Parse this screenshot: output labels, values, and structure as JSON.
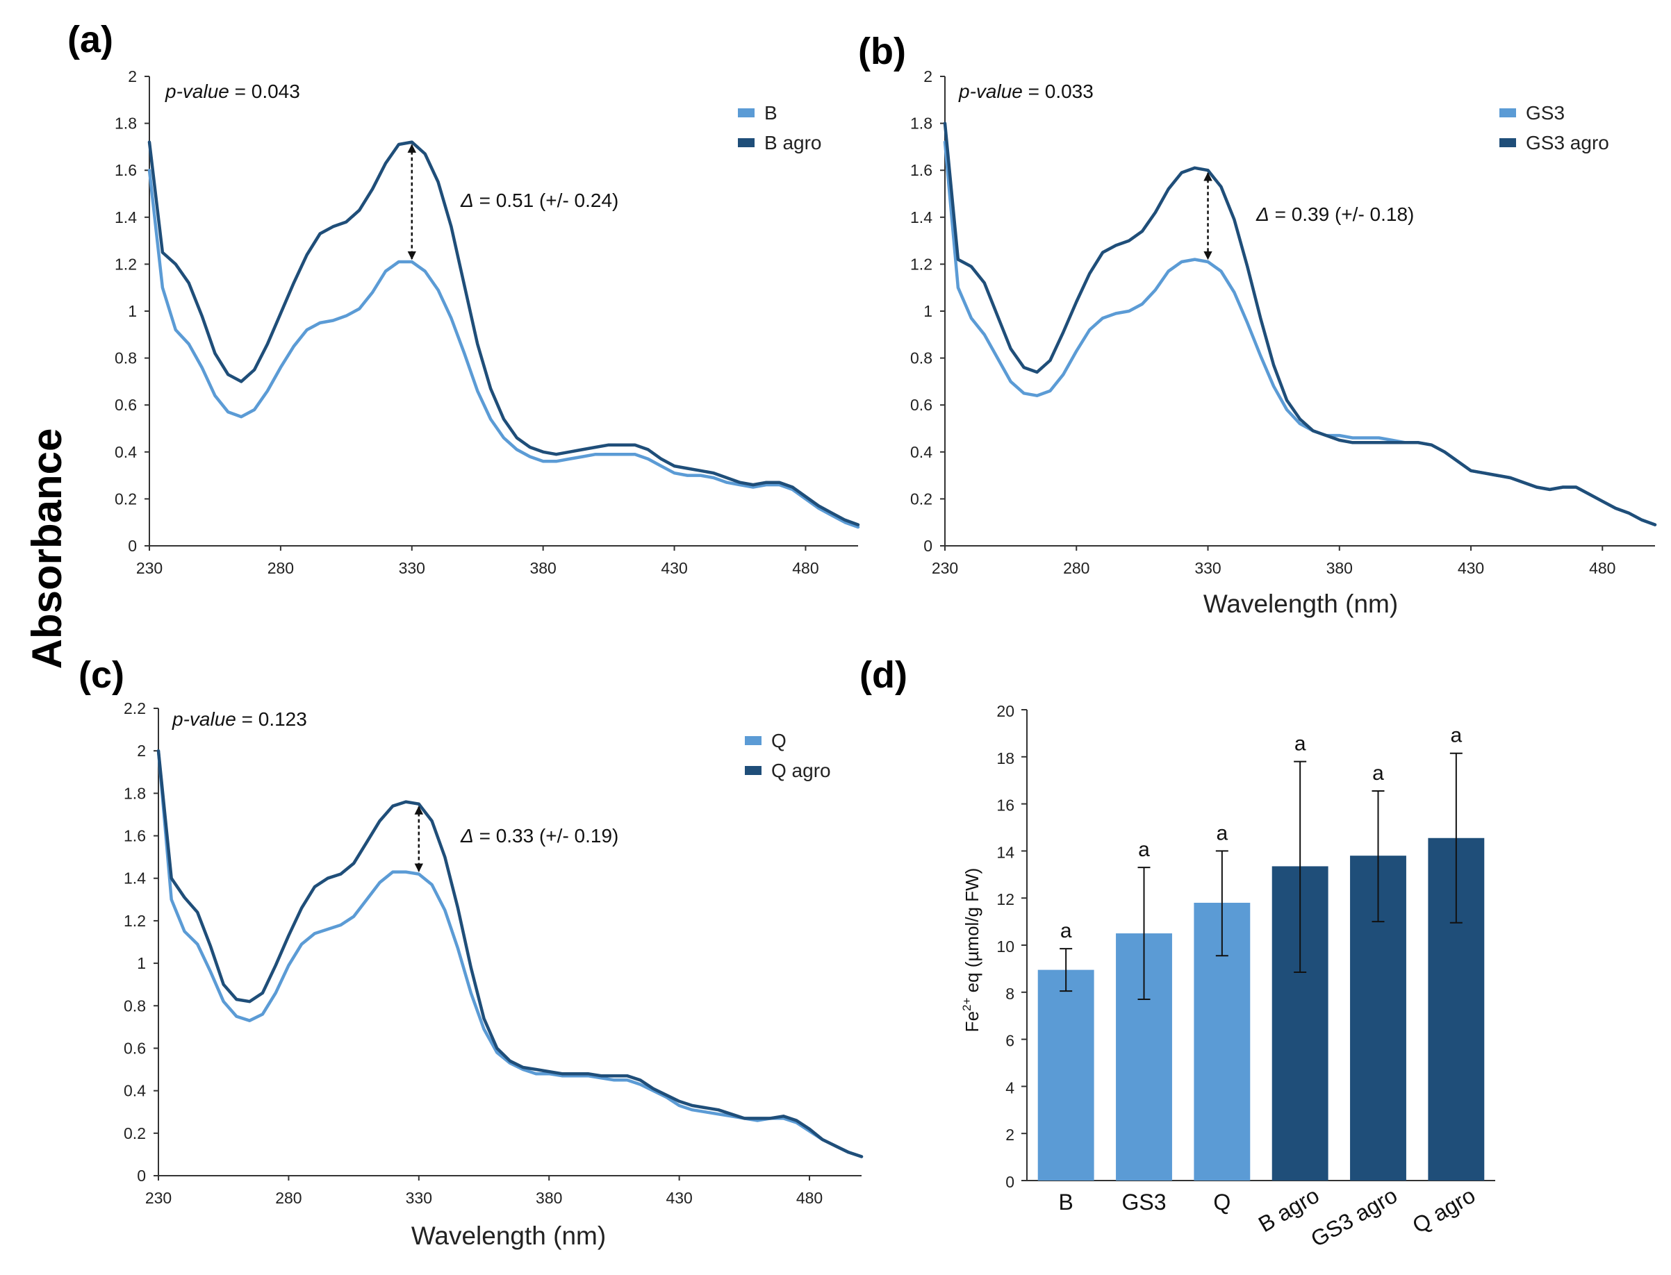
{
  "figure": {
    "shared_ylabel": "Absorbance",
    "shared_xlabel": "Wavelength (nm)",
    "colors": {
      "light": "#5b9bd5",
      "dark": "#1f4e79",
      "axis": "#333333"
    }
  },
  "chart_data": [
    {
      "type": "line",
      "panel": "(a)",
      "xlim": [
        230,
        500
      ],
      "ylim": [
        0,
        2
      ],
      "xticks": [
        "230",
        "280",
        "330",
        "380",
        "430",
        "480"
      ],
      "yticks": [
        "0",
        "0.2",
        "0.4",
        "0.6",
        "0.8",
        "1",
        "1.2",
        "1.4",
        "1.6",
        "1.8",
        "2"
      ],
      "xlabel": "",
      "pvalue_label": "p-value",
      "pvalue_text": " = 0.043",
      "delta_symbol": "Δ",
      "delta_text": " = 0.51 (+/- 0.24)",
      "arrow_x": 330,
      "series": [
        {
          "name": "B",
          "color": "#5b9bd5",
          "x": [
            230,
            235,
            240,
            245,
            250,
            255,
            260,
            265,
            270,
            275,
            280,
            285,
            290,
            295,
            300,
            305,
            310,
            315,
            320,
            325,
            330,
            335,
            340,
            345,
            350,
            355,
            360,
            365,
            370,
            375,
            380,
            385,
            390,
            395,
            400,
            405,
            410,
            415,
            420,
            425,
            430,
            435,
            440,
            445,
            450,
            455,
            460,
            465,
            470,
            475,
            480,
            485,
            490,
            495,
            500
          ],
          "y": [
            1.6,
            1.1,
            0.92,
            0.86,
            0.76,
            0.64,
            0.57,
            0.55,
            0.58,
            0.66,
            0.76,
            0.85,
            0.92,
            0.95,
            0.96,
            0.98,
            1.01,
            1.08,
            1.17,
            1.21,
            1.21,
            1.17,
            1.09,
            0.97,
            0.82,
            0.66,
            0.54,
            0.46,
            0.41,
            0.38,
            0.36,
            0.36,
            0.37,
            0.38,
            0.39,
            0.39,
            0.39,
            0.39,
            0.37,
            0.34,
            0.31,
            0.3,
            0.3,
            0.29,
            0.27,
            0.26,
            0.25,
            0.26,
            0.26,
            0.24,
            0.2,
            0.16,
            0.13,
            0.1,
            0.08
          ]
        },
        {
          "name": "B agro",
          "color": "#1f4e79",
          "x": [
            230,
            235,
            240,
            245,
            250,
            255,
            260,
            265,
            270,
            275,
            280,
            285,
            290,
            295,
            300,
            305,
            310,
            315,
            320,
            325,
            330,
            335,
            340,
            345,
            350,
            355,
            360,
            365,
            370,
            375,
            380,
            385,
            390,
            395,
            400,
            405,
            410,
            415,
            420,
            425,
            430,
            435,
            440,
            445,
            450,
            455,
            460,
            465,
            470,
            475,
            480,
            485,
            490,
            495,
            500
          ],
          "y": [
            1.72,
            1.25,
            1.2,
            1.12,
            0.98,
            0.82,
            0.73,
            0.7,
            0.75,
            0.86,
            0.99,
            1.12,
            1.24,
            1.33,
            1.36,
            1.38,
            1.43,
            1.52,
            1.63,
            1.71,
            1.72,
            1.67,
            1.55,
            1.36,
            1.11,
            0.86,
            0.67,
            0.54,
            0.46,
            0.42,
            0.4,
            0.39,
            0.4,
            0.41,
            0.42,
            0.43,
            0.43,
            0.43,
            0.41,
            0.37,
            0.34,
            0.33,
            0.32,
            0.31,
            0.29,
            0.27,
            0.26,
            0.27,
            0.27,
            0.25,
            0.21,
            0.17,
            0.14,
            0.11,
            0.09
          ]
        }
      ]
    },
    {
      "type": "line",
      "panel": "(b)",
      "xlim": [
        230,
        500
      ],
      "ylim": [
        0,
        2
      ],
      "xticks": [
        "230",
        "280",
        "330",
        "380",
        "430",
        "480"
      ],
      "yticks": [
        "0",
        "0.2",
        "0.4",
        "0.6",
        "0.8",
        "1",
        "1.2",
        "1.4",
        "1.6",
        "1.8",
        "2"
      ],
      "xlabel": "Wavelength (nm)",
      "pvalue_label": "p-value",
      "pvalue_text": " = 0.033",
      "delta_symbol": "Δ",
      "delta_text": " = 0.39 (+/- 0.18)",
      "arrow_x": 330,
      "series": [
        {
          "name": "GS3",
          "color": "#5b9bd5",
          "x": [
            230,
            235,
            240,
            245,
            250,
            255,
            260,
            265,
            270,
            275,
            280,
            285,
            290,
            295,
            300,
            305,
            310,
            315,
            320,
            325,
            330,
            335,
            340,
            345,
            350,
            355,
            360,
            365,
            370,
            375,
            380,
            385,
            390,
            395,
            400,
            405,
            410,
            415,
            420,
            425,
            430,
            435,
            440,
            445,
            450,
            455,
            460,
            465,
            470,
            475,
            480,
            485,
            490,
            495,
            500
          ],
          "y": [
            1.72,
            1.1,
            0.97,
            0.9,
            0.8,
            0.7,
            0.65,
            0.64,
            0.66,
            0.73,
            0.83,
            0.92,
            0.97,
            0.99,
            1.0,
            1.03,
            1.09,
            1.17,
            1.21,
            1.22,
            1.21,
            1.17,
            1.08,
            0.95,
            0.81,
            0.68,
            0.58,
            0.52,
            0.49,
            0.47,
            0.47,
            0.46,
            0.46,
            0.46,
            0.45,
            0.44,
            0.44,
            0.43,
            0.4,
            0.36,
            0.32,
            0.31,
            0.3,
            0.29,
            0.27,
            0.25,
            0.24,
            0.25,
            0.25,
            0.22,
            0.19,
            0.16,
            0.14,
            0.11,
            0.09
          ]
        },
        {
          "name": "GS3 agro",
          "color": "#1f4e79",
          "x": [
            230,
            235,
            240,
            245,
            250,
            255,
            260,
            265,
            270,
            275,
            280,
            285,
            290,
            295,
            300,
            305,
            310,
            315,
            320,
            325,
            330,
            335,
            340,
            345,
            350,
            355,
            360,
            365,
            370,
            375,
            380,
            385,
            390,
            395,
            400,
            405,
            410,
            415,
            420,
            425,
            430,
            435,
            440,
            445,
            450,
            455,
            460,
            465,
            470,
            475,
            480,
            485,
            490,
            495,
            500
          ],
          "y": [
            1.8,
            1.22,
            1.19,
            1.12,
            0.98,
            0.84,
            0.76,
            0.74,
            0.79,
            0.91,
            1.04,
            1.16,
            1.25,
            1.28,
            1.3,
            1.34,
            1.42,
            1.52,
            1.59,
            1.61,
            1.6,
            1.53,
            1.39,
            1.19,
            0.97,
            0.77,
            0.62,
            0.54,
            0.49,
            0.47,
            0.45,
            0.44,
            0.44,
            0.44,
            0.44,
            0.44,
            0.44,
            0.43,
            0.4,
            0.36,
            0.32,
            0.31,
            0.3,
            0.29,
            0.27,
            0.25,
            0.24,
            0.25,
            0.25,
            0.22,
            0.19,
            0.16,
            0.14,
            0.11,
            0.09
          ]
        }
      ]
    },
    {
      "type": "line",
      "panel": "(c)",
      "xlim": [
        230,
        500
      ],
      "ylim": [
        0,
        2.2
      ],
      "xticks": [
        "230",
        "280",
        "330",
        "380",
        "430",
        "480"
      ],
      "yticks": [
        "0",
        "0.2",
        "0.4",
        "0.6",
        "0.8",
        "1",
        "1.2",
        "1.4",
        "1.6",
        "1.8",
        "2",
        "2.2"
      ],
      "xlabel": "Wavelength (nm)",
      "pvalue_label": "p-value",
      "pvalue_text": " = 0.123",
      "delta_symbol": "Δ",
      "delta_text": " = 0.33 (+/- 0.19)",
      "arrow_x": 330,
      "series": [
        {
          "name": "Q",
          "color": "#5b9bd5",
          "x": [
            230,
            235,
            240,
            245,
            250,
            255,
            260,
            265,
            270,
            275,
            280,
            285,
            290,
            295,
            300,
            305,
            310,
            315,
            320,
            325,
            330,
            335,
            340,
            345,
            350,
            355,
            360,
            365,
            370,
            375,
            380,
            385,
            390,
            395,
            400,
            405,
            410,
            415,
            420,
            425,
            430,
            435,
            440,
            445,
            450,
            455,
            460,
            465,
            470,
            475,
            480,
            485,
            490,
            495,
            500
          ],
          "y": [
            2.0,
            1.3,
            1.15,
            1.09,
            0.96,
            0.82,
            0.75,
            0.73,
            0.76,
            0.86,
            0.99,
            1.09,
            1.14,
            1.16,
            1.18,
            1.22,
            1.3,
            1.38,
            1.43,
            1.43,
            1.42,
            1.37,
            1.25,
            1.07,
            0.86,
            0.69,
            0.58,
            0.53,
            0.5,
            0.48,
            0.48,
            0.47,
            0.47,
            0.47,
            0.46,
            0.45,
            0.45,
            0.43,
            0.4,
            0.37,
            0.33,
            0.31,
            0.3,
            0.29,
            0.28,
            0.27,
            0.26,
            0.27,
            0.27,
            0.25,
            0.21,
            0.17,
            0.14,
            0.11,
            0.09
          ]
        },
        {
          "name": "Q agro",
          "color": "#1f4e79",
          "x": [
            230,
            235,
            240,
            245,
            250,
            255,
            260,
            265,
            270,
            275,
            280,
            285,
            290,
            295,
            300,
            305,
            310,
            315,
            320,
            325,
            330,
            335,
            340,
            345,
            350,
            355,
            360,
            365,
            370,
            375,
            380,
            385,
            390,
            395,
            400,
            405,
            410,
            415,
            420,
            425,
            430,
            435,
            440,
            445,
            450,
            455,
            460,
            465,
            470,
            475,
            480,
            485,
            490,
            495,
            500
          ],
          "y": [
            2.0,
            1.4,
            1.31,
            1.24,
            1.08,
            0.9,
            0.83,
            0.82,
            0.86,
            0.99,
            1.13,
            1.26,
            1.36,
            1.4,
            1.42,
            1.47,
            1.57,
            1.67,
            1.74,
            1.76,
            1.75,
            1.67,
            1.5,
            1.26,
            0.98,
            0.74,
            0.6,
            0.54,
            0.51,
            0.5,
            0.49,
            0.48,
            0.48,
            0.48,
            0.47,
            0.47,
            0.47,
            0.45,
            0.41,
            0.38,
            0.35,
            0.33,
            0.32,
            0.31,
            0.29,
            0.27,
            0.27,
            0.27,
            0.28,
            0.26,
            0.22,
            0.17,
            0.14,
            0.11,
            0.09
          ]
        }
      ]
    },
    {
      "type": "bar",
      "panel": "(d)",
      "ylim": [
        0,
        20
      ],
      "yticks": [
        "0",
        "2",
        "4",
        "6",
        "8",
        "10",
        "12",
        "14",
        "16",
        "18",
        "20"
      ],
      "ylabel_prefix": "Fe",
      "ylabel_sup": "2+",
      "ylabel_suffix": " eq (µmol/g FW)",
      "categories": [
        "B",
        "GS3",
        "Q",
        "B agro",
        "GS3 agro",
        "Q agro"
      ],
      "values": [
        8.95,
        10.5,
        11.8,
        13.35,
        13.8,
        14.55
      ],
      "error_low": [
        8.05,
        7.7,
        9.55,
        8.85,
        11.0,
        10.95
      ],
      "error_high": [
        9.85,
        13.3,
        14.0,
        17.8,
        16.55,
        18.15
      ],
      "significance": [
        "a",
        "a",
        "a",
        "a",
        "a",
        "a"
      ],
      "bar_colors": [
        "#5b9bd5",
        "#5b9bd5",
        "#5b9bd5",
        "#1f4e79",
        "#1f4e79",
        "#1f4e79"
      ]
    }
  ]
}
